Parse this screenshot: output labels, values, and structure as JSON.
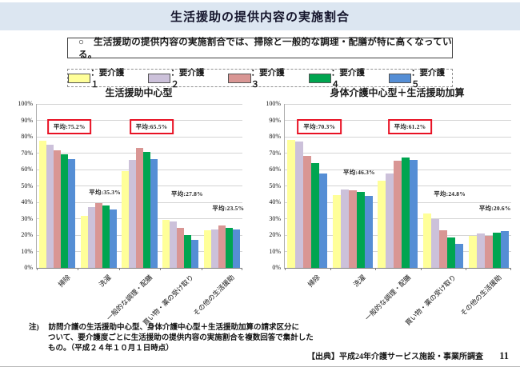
{
  "slide": {
    "title": "生活援助の提供内容の実施割合",
    "callout": "○　生活援助の提供内容の実施割合では、掃除と一般的な調理・配膳が特に高くなっている。",
    "note_lines": [
      "注)　 訪問介護の生活援助中心型、身体介護中心型＋生活援助加算の請求区分に",
      "ついて、要介護度ごとに生活援助の提供内容の実施割合を複数回答で集計した",
      "もの。（平成２４年１０月１日時点）"
    ],
    "source": "【出典】平成24年介護サービス施設・事業所調査",
    "page_number": "11"
  },
  "legend": {
    "items": [
      {
        "label": "：要介護１",
        "color": "#FFFF99"
      },
      {
        "label": "：要介護２",
        "color": "#CCC1DA"
      },
      {
        "label": "：要介護３",
        "color": "#D99694"
      },
      {
        "label": "：要介護４",
        "color": "#00A550"
      },
      {
        "label": "：要介護５",
        "color": "#558ED5"
      }
    ]
  },
  "chart_data": [
    {
      "type": "bar",
      "title": "生活援助中心型",
      "categories": [
        "掃除",
        "洗濯",
        "一般的な調理・配膳",
        "買い物・薬の受け取り",
        "その他の生活援助"
      ],
      "series": [
        {
          "name": "要介護1",
          "values": [
            77.5,
            31.5,
            59.0,
            29.5,
            23.0
          ]
        },
        {
          "name": "要介護2",
          "values": [
            75.0,
            37.0,
            66.0,
            28.5,
            23.5
          ]
        },
        {
          "name": "要介護3",
          "values": [
            71.5,
            39.5,
            73.0,
            24.5,
            26.0
          ]
        },
        {
          "name": "要介護4",
          "values": [
            69.5,
            38.0,
            70.5,
            20.0,
            24.5
          ]
        },
        {
          "name": "要介護5",
          "values": [
            66.5,
            35.5,
            66.5,
            17.0,
            23.5
          ]
        }
      ],
      "annotations": [
        {
          "text": "平均:75.2%",
          "boxed": true,
          "y_pct": 85
        },
        {
          "text": "平均:35.3%",
          "boxed": false,
          "y_pct": 45
        },
        {
          "text": "平均:65.5%",
          "boxed": true,
          "y_pct": 85
        },
        {
          "text": "平均:27.8%",
          "boxed": false,
          "y_pct": 44
        },
        {
          "text": "平均:23.5%",
          "boxed": false,
          "y_pct": 35
        }
      ],
      "ylabel": "",
      "xlabel": "",
      "ylim": [
        0,
        100
      ],
      "y_step": 10,
      "y_format": "%",
      "grid": true
    },
    {
      "type": "bar",
      "title": "身体介護中心型＋生活援助加算",
      "categories": [
        "掃除",
        "洗濯",
        "一般的な調理・配膳",
        "買い物・薬の受け取り",
        "その他の生活援助"
      ],
      "series": [
        {
          "name": "要介護1",
          "values": [
            78.0,
            44.5,
            53.0,
            33.0,
            19.5
          ]
        },
        {
          "name": "要介護2",
          "values": [
            77.0,
            48.0,
            57.5,
            30.0,
            21.0
          ]
        },
        {
          "name": "要介護3",
          "values": [
            68.5,
            47.5,
            65.5,
            23.0,
            19.5
          ]
        },
        {
          "name": "要介護4",
          "values": [
            64.0,
            46.5,
            67.5,
            18.5,
            21.5
          ]
        },
        {
          "name": "要介護5",
          "values": [
            57.5,
            44.0,
            66.0,
            14.5,
            22.5
          ]
        }
      ],
      "annotations": [
        {
          "text": "平均:70.3%",
          "boxed": true,
          "y_pct": 85
        },
        {
          "text": "平均:46.3%",
          "boxed": false,
          "y_pct": 57
        },
        {
          "text": "平均:61.2%",
          "boxed": true,
          "y_pct": 85
        },
        {
          "text": "平均:24.8%",
          "boxed": false,
          "y_pct": 44
        },
        {
          "text": "平均:20.6%",
          "boxed": false,
          "y_pct": 35
        }
      ],
      "ylabel": "",
      "xlabel": "",
      "ylim": [
        0,
        100
      ],
      "y_step": 10,
      "y_format": "%",
      "grid": true
    }
  ]
}
